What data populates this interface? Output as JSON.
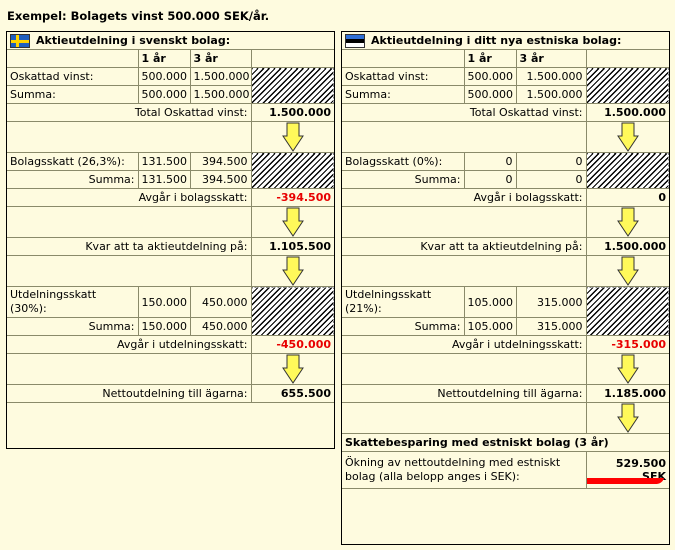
{
  "title": "Exempel: Bolagets vinst 500.000 SEK/år.",
  "colors": {
    "background": "#fefbdf",
    "negative": "#e80000",
    "arrow": "#fff95a"
  },
  "left": {
    "heading": "Aktieutdelning i svenskt bolag:",
    "flag_icon": "sweden-flag-icon",
    "col1": "1 år",
    "col2": "3 år",
    "profit_label": "Oskattad vinst:",
    "profit_1": "500.000",
    "profit_3": "1.500.000",
    "sum_label": "Summa:",
    "sum_1": "500.000",
    "sum_3": "1.500.000",
    "total_profit_label": "Total Oskattad vinst:",
    "total_profit": "1.500.000",
    "corp_tax_label": "Bolagsskatt (26,3%):",
    "corp_tax_1": "131.500",
    "corp_tax_3": "394.500",
    "corp_sum_label": "Summa:",
    "corp_sum_1": "131.500",
    "corp_sum_3": "394.500",
    "corp_deduct_label": "Avgår i bolagsskatt:",
    "corp_deduct": "-394.500",
    "remaining_label": "Kvar att ta aktieutdelning på:",
    "remaining": "1.105.500",
    "div_tax_label": "Utdelningsskatt (30%):",
    "div_tax_1": "150.000",
    "div_tax_3": "450.000",
    "div_sum_label": "Summa:",
    "div_sum_1": "150.000",
    "div_sum_3": "450.000",
    "div_deduct_label": "Avgår i utdelningsskatt:",
    "div_deduct": "-450.000",
    "net_label": "Nettoutdelning till ägarna:",
    "net": "655.500"
  },
  "right": {
    "heading": "Aktieutdelning i ditt nya estniska bolag:",
    "flag_icon": "estonia-flag-icon",
    "col1": "1 år",
    "col2": "3 år",
    "profit_label": "Oskattad vinst:",
    "profit_1": "500.000",
    "profit_3": "1.500.000",
    "sum_label": "Summa:",
    "sum_1": "500.000",
    "sum_3": "1.500.000",
    "total_profit_label": "Total Oskattad vinst:",
    "total_profit": "1.500.000",
    "corp_tax_label": "Bolagsskatt (0%):",
    "corp_tax_1": "0",
    "corp_tax_3": "0",
    "corp_sum_label": "Summa:",
    "corp_sum_1": "0",
    "corp_sum_3": "0",
    "corp_deduct_label": "Avgår i bolagsskatt:",
    "corp_deduct": "0",
    "remaining_label": "Kvar att ta aktieutdelning på:",
    "remaining": "1.500.000",
    "div_tax_label": "Utdelningsskatt (21%):",
    "div_tax_1": "105.000",
    "div_tax_3": "315.000",
    "div_sum_label": "Summa:",
    "div_sum_1": "105.000",
    "div_sum_3": "315.000",
    "div_deduct_label": "Avgår i utdelningsskatt:",
    "div_deduct": "-315.000",
    "net_label": "Nettoutdelning till ägarna:",
    "net": "1.185.000",
    "savings_heading": "Skattebesparing med estniskt bolag (3 år)",
    "savings_label": "Ökning av nettoutdelning med estniskt bolag (alla belopp anges i SEK):",
    "savings_value": "529.500",
    "savings_unit": "SEK"
  }
}
